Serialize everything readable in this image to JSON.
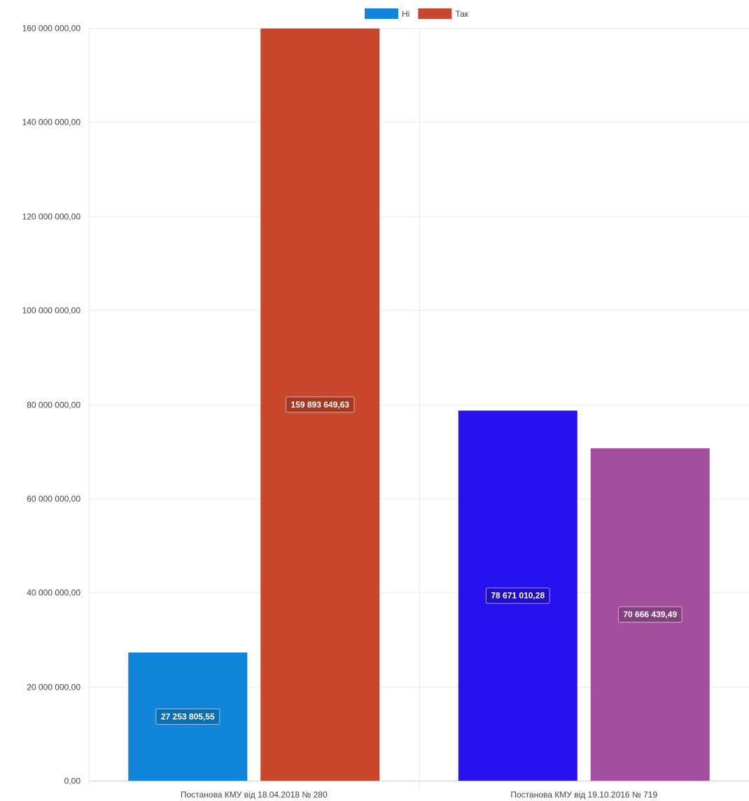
{
  "chart_data": {
    "type": "bar",
    "categories": [
      "Постанова КМУ від 18.04.2018 № 280",
      "Постанова КМУ від 19.10.2016 № 719"
    ],
    "series": [
      {
        "name": "Ні",
        "values": [
          27253805.55,
          78671010.28
        ],
        "labels": [
          "27 253 805,55",
          "78 671 010,28"
        ]
      },
      {
        "name": "Так",
        "values": [
          159893649.63,
          70666439.49
        ],
        "labels": [
          "159 893 649,63",
          "70 666 439,49"
        ]
      }
    ],
    "bar_colors": [
      [
        "#1185d9",
        "#2712ef"
      ],
      [
        "#c8462b",
        "#a34f9d"
      ]
    ],
    "legend_colors": [
      "#1185d9",
      "#c8462b"
    ],
    "legend_position": "top-center",
    "ylim": [
      0,
      160000000
    ],
    "yticks": [
      0,
      20000000,
      40000000,
      60000000,
      80000000,
      100000000,
      120000000,
      140000000,
      160000000
    ],
    "ytick_labels": [
      "0,00",
      "20 000 000,00",
      "40 000 000,00",
      "60 000 000,00",
      "80 000 000,00",
      "100 000 000,00",
      "120 000 000,00",
      "140 000 000,00",
      "160 000 000,00"
    ],
    "grid": true,
    "title": "",
    "xlabel": "",
    "ylabel": ""
  }
}
